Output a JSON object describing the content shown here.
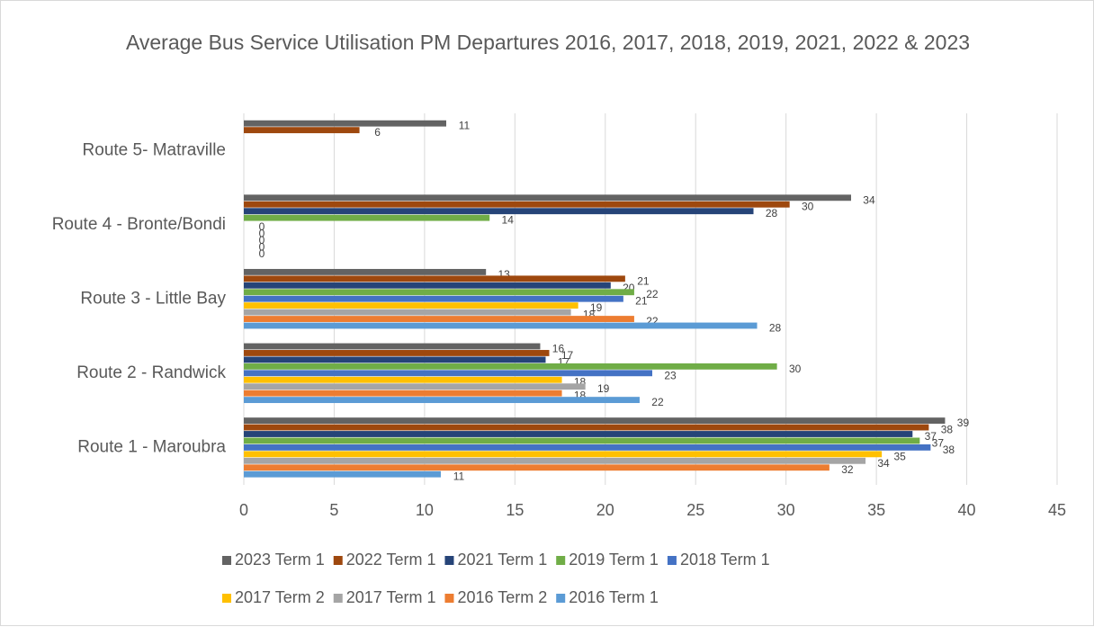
{
  "chart_data": {
    "type": "barh",
    "title": "Average Bus Service Utilisation PM Departures 2016, 2017, 2018, 2019, 2021, 2022 & 2023",
    "categories": [
      "Route 1 - Maroubra",
      "Route 2 - Randwick",
      "Route 3 - Little Bay",
      "Route 4 - Bronte/Bondi",
      "Route 5- Matraville"
    ],
    "series": [
      {
        "name": "2023 Term 1",
        "color": "#636363",
        "values": [
          38.8,
          16.4,
          13.4,
          33.6,
          11.2
        ],
        "value_labels": [
          "39",
          "16",
          "13",
          "34",
          "11"
        ]
      },
      {
        "name": "2022 Term 1",
        "color": "#9e480e",
        "values": [
          37.9,
          16.9,
          21.1,
          30.2,
          6.4
        ],
        "value_labels": [
          "38",
          "17",
          "21",
          "30",
          "6"
        ]
      },
      {
        "name": "2021 Term 1",
        "color": "#264478",
        "values": [
          37.0,
          16.7,
          20.3,
          28.2,
          null
        ],
        "value_labels": [
          "37",
          "17",
          "20",
          "28",
          null
        ]
      },
      {
        "name": "2019 Term 1",
        "color": "#70ad47",
        "values": [
          37.4,
          29.5,
          21.6,
          13.6,
          null
        ],
        "value_labels": [
          "37",
          "30",
          "22",
          "14",
          null
        ]
      },
      {
        "name": "2018 Term 1",
        "color": "#4472c4",
        "values": [
          38.0,
          22.6,
          21.0,
          0,
          null
        ],
        "value_labels": [
          "38",
          "23",
          "21",
          "0",
          null
        ]
      },
      {
        "name": "2017 Term 2",
        "color": "#ffc000",
        "values": [
          35.3,
          17.6,
          18.5,
          0,
          null
        ],
        "value_labels": [
          "35",
          "18",
          "19",
          "0",
          null
        ]
      },
      {
        "name": "2017 Term 1",
        "color": "#a5a5a5",
        "values": [
          34.4,
          18.9,
          18.1,
          0,
          null
        ],
        "value_labels": [
          "34",
          "19",
          "18",
          "0",
          null
        ]
      },
      {
        "name": "2016 Term 2",
        "color": "#ed7d31",
        "values": [
          32.4,
          17.6,
          21.6,
          0,
          null
        ],
        "value_labels": [
          "32",
          "18",
          "22",
          "0",
          null
        ]
      },
      {
        "name": "2016 Term 1",
        "color": "#5b9bd5",
        "values": [
          10.9,
          21.9,
          28.4,
          0,
          null
        ],
        "value_labels": [
          "11",
          "22",
          "28",
          "0",
          null
        ]
      }
    ],
    "xlim": [
      0,
      45
    ],
    "xticks": [
      0,
      5,
      10,
      15,
      20,
      25,
      30,
      35,
      40,
      45
    ],
    "grid": true
  }
}
